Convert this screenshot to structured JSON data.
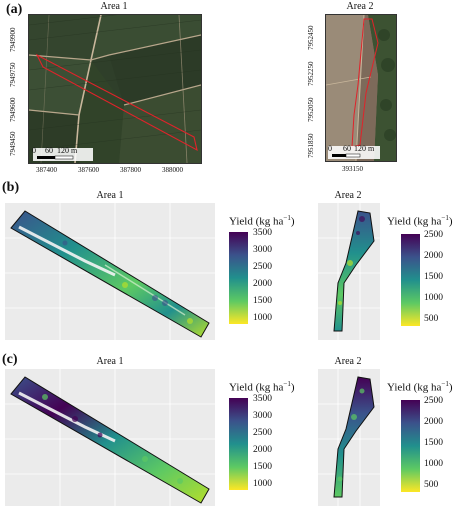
{
  "figure": {
    "panels": [
      {
        "letter": "(a)",
        "area1": {
          "title": "Area 1",
          "y_ticks": [
            "7949900",
            "7949750",
            "7949600",
            "7949450"
          ],
          "x_ticks": [
            "387400",
            "387600",
            "387800",
            "388000"
          ],
          "scalebar": {
            "labels": [
              "0",
              "60",
              "120 m"
            ]
          }
        },
        "area2": {
          "title": "Area 2",
          "y_ticks": [
            "7952450",
            "7952250",
            "7952050",
            "7951850"
          ],
          "x_ticks": [
            "393150"
          ],
          "scalebar": {
            "labels": [
              "0",
              "60",
              "120 m"
            ]
          }
        }
      },
      {
        "letter": "(b)",
        "area1": {
          "title": "Area 1"
        },
        "area2": {
          "title": "Area 2"
        },
        "legend1": {
          "title": "Yield (kg ha",
          "exp": "−1",
          "close": ")",
          "labels": [
            "3500",
            "3000",
            "2500",
            "2000",
            "1500",
            "1000"
          ]
        },
        "legend2": {
          "title": "Yield (kg ha",
          "exp": "−1",
          "close": ")",
          "labels": [
            "2500",
            "2000",
            "1500",
            "1000",
            "500"
          ]
        }
      },
      {
        "letter": "(c)",
        "area1": {
          "title": "Area 1"
        },
        "area2": {
          "title": "Area 2"
        },
        "legend1": {
          "title": "Yield (kg ha",
          "exp": "−1",
          "close": ")",
          "labels": [
            "3500",
            "3000",
            "2500",
            "2000",
            "1500",
            "1000"
          ]
        },
        "legend2": {
          "title": "Yield (kg ha",
          "exp": "−1",
          "close": ")",
          "labels": [
            "2500",
            "2000",
            "1500",
            "1000",
            "500"
          ]
        }
      }
    ],
    "colormap": [
      "#440154",
      "#3b528b",
      "#21908d",
      "#5dc963",
      "#fde725"
    ],
    "boundary_color": "#e0232a"
  }
}
